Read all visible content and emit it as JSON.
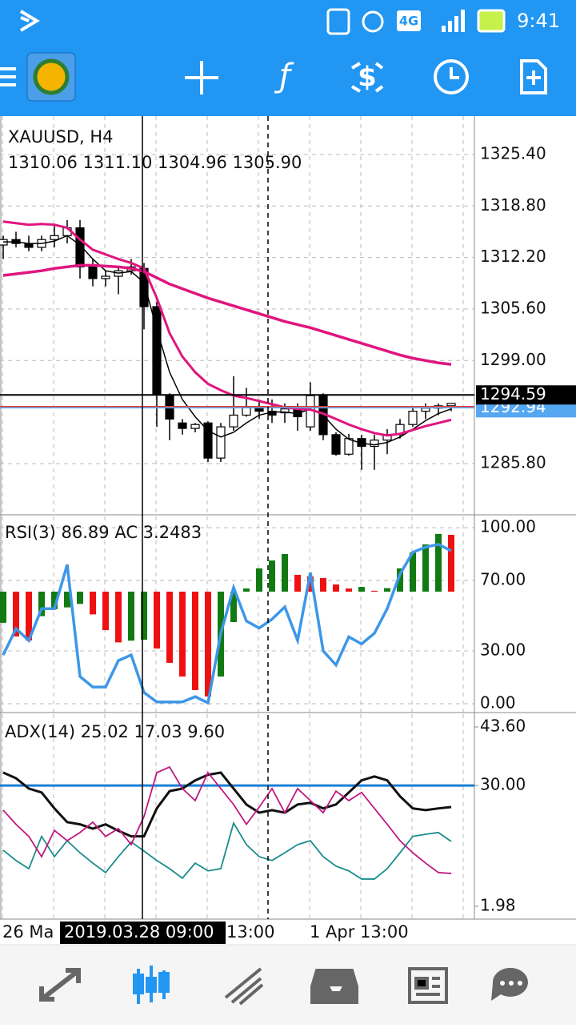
{
  "status_bar": {
    "network": "4G",
    "time": "9:41"
  },
  "chart": {
    "symbol": "XAUUSD, H4",
    "ohlc": "1310.06 1311.10 1304.96 1305.90",
    "ylim": [
      1279.23,
      1330.32
    ],
    "yticks": [
      {
        "value": 1325.4,
        "label": "1325.40"
      },
      {
        "value": 1318.8,
        "label": "1318.80"
      },
      {
        "value": 1312.2,
        "label": "1312.20"
      },
      {
        "value": 1305.6,
        "label": "1305.60"
      },
      {
        "value": 1299,
        "label": "1299.00"
      },
      {
        "value": 1285.8,
        "label": "1285.80"
      }
    ],
    "candles": {
      "up_color": "#ffffff",
      "down_color": "#000000",
      "open": [
        1313.8,
        1314.5,
        1314.0,
        1313.5,
        1314.5,
        1315.0,
        1316.0,
        1311.0,
        1309.5,
        1309.8,
        1310.5,
        1310.8,
        1305.9,
        1294.6,
        1291.0,
        1290.3,
        1291.0,
        1286.5,
        1290.5,
        1292.0,
        1293.0,
        1292.5,
        1292.3,
        1292.8,
        1290.5,
        1294.5,
        1289.5,
        1287.0,
        1289.0,
        1288.0,
        1288.8,
        1289.5,
        1290.8,
        1292.5,
        1292.9,
        1293.2
      ],
      "high": [
        1315.0,
        1315.5,
        1315.0,
        1315.0,
        1316.5,
        1317.0,
        1317.0,
        1312.0,
        1310.5,
        1311.0,
        1312.0,
        1311.5,
        1306.5,
        1294.8,
        1291.5,
        1291.0,
        1291.2,
        1291.0,
        1297.0,
        1295.5,
        1294.0,
        1294.0,
        1293.5,
        1293.5,
        1296.2,
        1294.8,
        1289.8,
        1289.6,
        1289.5,
        1289.5,
        1290.2,
        1291.5,
        1293.0,
        1293.5,
        1293.5,
        1293.5
      ],
      "low": [
        1312.0,
        1313.5,
        1313.0,
        1313.0,
        1313.5,
        1314.0,
        1309.5,
        1308.5,
        1308.5,
        1307.5,
        1310.0,
        1303.0,
        1290.5,
        1288.8,
        1289.5,
        1289.8,
        1286.0,
        1286.0,
        1290.0,
        1291.8,
        1291.5,
        1291.0,
        1291.0,
        1290.0,
        1290.0,
        1288.8,
        1286.8,
        1286.8,
        1285.0,
        1285.0,
        1287.0,
        1289.0,
        1290.5,
        1291.5,
        1292.0,
        1292.5
      ],
      "close": [
        1314.5,
        1314.0,
        1313.5,
        1314.5,
        1315.0,
        1316.0,
        1311.0,
        1309.5,
        1309.8,
        1310.5,
        1311.0,
        1305.9,
        1294.6,
        1291.5,
        1290.3,
        1290.8,
        1286.5,
        1290.5,
        1292.0,
        1293.0,
        1292.5,
        1292.0,
        1292.8,
        1291.8,
        1294.5,
        1289.5,
        1287.0,
        1289.0,
        1288.0,
        1288.8,
        1289.5,
        1290.8,
        1292.5,
        1292.9,
        1293.2,
        1293.5
      ]
    },
    "moving_averages": [
      {
        "color": "#000000",
        "width": 1.5,
        "values": [
          1314.2,
          1314.2,
          1314.0,
          1314.0,
          1314.3,
          1315.0,
          1313.8,
          1312.0,
          1310.5,
          1310.2,
          1310.4,
          1309.0,
          1303.0,
          1297.5,
          1294.0,
          1291.8,
          1290.0,
          1289.2,
          1289.8,
          1291.0,
          1292.0,
          1292.4,
          1292.4,
          1292.2,
          1292.8,
          1292.0,
          1290.2,
          1288.9,
          1288.4,
          1288.2,
          1288.5,
          1289.2,
          1290.2,
          1291.3,
          1292.2,
          1292.8
        ]
      },
      {
        "color": "#e0157f",
        "width": 3,
        "values": [
          1316.8,
          1316.6,
          1316.4,
          1316.5,
          1316.4,
          1316.0,
          1314.5,
          1313.2,
          1312.6,
          1312.0,
          1311.5,
          1310.8,
          1307.0,
          1302.5,
          1299.5,
          1297.5,
          1296.0,
          1295.2,
          1294.5,
          1294.2,
          1293.8,
          1293.4,
          1293.0,
          1292.8,
          1292.7,
          1292.2,
          1291.5,
          1290.8,
          1290.2,
          1289.7,
          1289.4,
          1289.6,
          1290.1,
          1290.6,
          1291.0,
          1291.4
        ]
      },
      {
        "color": "#e0157f",
        "width": 3.5,
        "values": [
          1309.9,
          1310.1,
          1310.3,
          1310.5,
          1310.8,
          1311.0,
          1311.2,
          1311.2,
          1311.1,
          1311.0,
          1310.8,
          1310.4,
          1309.6,
          1308.8,
          1308.2,
          1307.6,
          1307.0,
          1306.5,
          1306.0,
          1305.5,
          1305.0,
          1304.5,
          1304.0,
          1303.6,
          1303.2,
          1302.7,
          1302.2,
          1301.7,
          1301.2,
          1300.7,
          1300.2,
          1299.7,
          1299.3,
          1299.0,
          1298.7,
          1298.5
        ]
      }
    ],
    "bid": {
      "value": 1294.59,
      "label": "1294.59",
      "color": "#000000"
    },
    "ask": {
      "value": 1292.94,
      "label": "1292.94",
      "color": "#55a7f2"
    },
    "order_line": {
      "value": 1293.1,
      "color": "#e53935"
    }
  },
  "rsi": {
    "label": "RSI(3) 86.89 AC 3.2483",
    "ylim": [
      -5,
      106.4
    ],
    "yticks": [
      {
        "value": 100,
        "label": "100.00"
      },
      {
        "value": 70,
        "label": "70.00"
      },
      {
        "value": 30,
        "label": "30.00"
      },
      {
        "value": 0,
        "label": "0.00"
      }
    ],
    "color": "#3d97e8",
    "values": [
      27.7,
      42.7,
      35.9,
      54,
      54,
      79,
      15.5,
      9.5,
      9.5,
      24.5,
      27.7,
      6.4,
      1,
      1,
      1,
      4,
      0.5,
      40,
      66,
      47,
      43,
      48,
      55,
      36,
      74.5,
      30,
      22,
      38,
      34,
      40,
      54,
      73.6,
      86,
      89,
      90.5,
      86.89
    ],
    "ac": {
      "ylim": [
        -6.91,
        4.3
      ],
      "up_color": "#127a12",
      "down_color": "#ee1111",
      "values": [
        -1.78,
        -2.56,
        -2.79,
        -1.4,
        -1.0,
        -0.9,
        -0.7,
        -1.3,
        -2.2,
        -2.9,
        -2.8,
        -2.75,
        -3.25,
        -4.07,
        -4.85,
        -5.63,
        -5.99,
        -4.85,
        -1.74,
        0.18,
        1.33,
        1.78,
        2.15,
        0.96,
        0.87,
        0.78,
        0.41,
        0.18,
        0.27,
        0.05,
        0.2,
        1.33,
        2.24,
        2.7,
        3.3,
        3.2483
      ]
    }
  },
  "adx": {
    "label": "ADX(14) 25.02 17.03 9.60",
    "ylim": [
      -1.0,
      46.57
    ],
    "yticks": [
      {
        "value": 43.6,
        "label": "43.60"
      },
      {
        "value": 30,
        "label": "30.00"
      },
      {
        "value": 1.98,
        "label": "1.98"
      }
    ],
    "level": {
      "value": 30,
      "color": "#1a7fd6"
    },
    "series": [
      {
        "color": "#111111",
        "width": 3,
        "values": [
          33.0,
          31.7,
          29.3,
          28.4,
          24.7,
          21.5,
          21.0,
          20.0,
          21.0,
          19.5,
          18.2,
          18.2,
          24.7,
          28.7,
          29.3,
          31.2,
          32.5,
          33.0,
          29.3,
          25.6,
          23.7,
          24.3,
          23.7,
          25.6,
          26.0,
          24.7,
          25.6,
          28.4,
          31.2,
          32.1,
          31.2,
          27.5,
          24.7,
          24.3,
          24.7,
          25.02
        ]
      },
      {
        "color": "#1a8c8c",
        "width": 1.8,
        "values": [
          15.0,
          12.6,
          10.7,
          18.2,
          13.5,
          17.2,
          14.4,
          12.0,
          9.8,
          13.5,
          16.9,
          14.8,
          12.6,
          10.7,
          8.5,
          12.0,
          10.2,
          10.7,
          21.3,
          16.3,
          13.5,
          12.6,
          14.4,
          16.3,
          17.2,
          13.5,
          11.3,
          10.2,
          8.3,
          8.3,
          10.7,
          14.4,
          18.2,
          18.7,
          19.1,
          17.03
        ]
      },
      {
        "color": "#c0187f",
        "width": 1.8,
        "values": [
          24.3,
          21.0,
          18.2,
          13.5,
          19.6,
          17.2,
          19.1,
          21.5,
          18.2,
          20.0,
          16.3,
          22.8,
          33.0,
          34.3,
          29.3,
          26.5,
          33.0,
          29.3,
          25.6,
          21.0,
          25.0,
          29.3,
          23.7,
          29.3,
          26.5,
          23.7,
          28.7,
          26.5,
          28.4,
          24.7,
          21.0,
          17.2,
          14.4,
          12.0,
          9.8,
          9.6
        ]
      }
    ]
  },
  "time_axis": {
    "labels": [
      "26 Ma",
      "13:00",
      "1 Apr 13:00"
    ],
    "cursor_label": "2019.03.28 09:00"
  }
}
